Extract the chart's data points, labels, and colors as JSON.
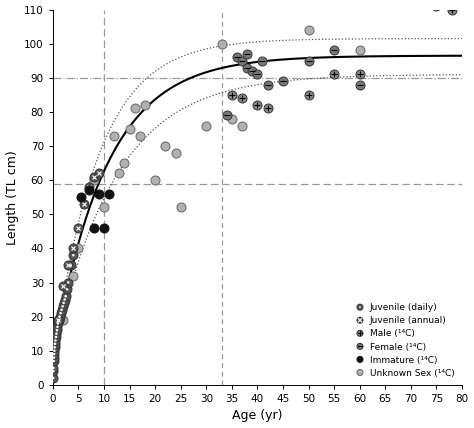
{
  "xlabel": "Age (yr)",
  "ylabel": "Length (TL cm)",
  "xlim": [
    0,
    80
  ],
  "ylim": [
    0,
    110
  ],
  "xticks": [
    0,
    5,
    10,
    15,
    20,
    25,
    30,
    35,
    40,
    45,
    50,
    55,
    60,
    65,
    70,
    75,
    80
  ],
  "yticks": [
    0,
    10,
    20,
    30,
    40,
    50,
    60,
    70,
    80,
    90,
    100,
    110
  ],
  "vonB_Linf": 96.5,
  "vonB_k": 0.097,
  "vonB_t0": -0.8,
  "vonB_Linf_upper": 101.5,
  "vonB_k_upper": 0.115,
  "vonB_t0_upper": -0.5,
  "vonB_Linf_lower": 91.0,
  "vonB_k_lower": 0.083,
  "vonB_t0_lower": -1.1,
  "vline1_x": 10,
  "vline2_x": 33,
  "hline1_y": 90,
  "hline2_y": 59,
  "juvenile_daily_x": [
    0.05,
    0.08,
    0.1,
    0.15,
    0.2,
    0.25,
    0.3,
    0.35,
    0.4,
    0.5,
    0.6,
    0.7,
    0.8,
    0.9,
    1.0,
    1.1,
    1.2,
    1.3,
    1.5,
    1.7,
    1.9,
    2.1,
    2.3,
    2.5,
    2.8,
    3.0,
    3.5,
    4.0
  ],
  "juvenile_daily_y": [
    2,
    4,
    5,
    7,
    8,
    9,
    10,
    11,
    12,
    13,
    14,
    15,
    16,
    17,
    18,
    19,
    19,
    20,
    21,
    22,
    23,
    24,
    25,
    26,
    28,
    30,
    35,
    38
  ],
  "juvenile_annual_x": [
    1.0,
    2.0,
    3.0,
    4.0,
    5.0,
    6.0,
    7.0,
    8.0,
    9.0
  ],
  "juvenile_annual_y": [
    19,
    29,
    35,
    40,
    46,
    53,
    58,
    61,
    62
  ],
  "male_14C_x": [
    35,
    37,
    40,
    42,
    50,
    55,
    60,
    75,
    78
  ],
  "male_14C_y": [
    85,
    84,
    82,
    81,
    85,
    91,
    91,
    111,
    110
  ],
  "female_14C_x": [
    34,
    36,
    37,
    38,
    38,
    39,
    40,
    41,
    42,
    45,
    50,
    55,
    60
  ],
  "female_14C_y": [
    79,
    96,
    95,
    97,
    93,
    92,
    91,
    95,
    88,
    89,
    95,
    98,
    88
  ],
  "immature_14C_x": [
    5.5,
    7.0,
    8.0,
    9.0,
    10.0,
    11.0
  ],
  "immature_14C_y": [
    55,
    57,
    46,
    56,
    46,
    56
  ],
  "unknown_14C_x": [
    2,
    4,
    5,
    8,
    10,
    12,
    13,
    14,
    15,
    16,
    17,
    18,
    20,
    22,
    24,
    25,
    30,
    33,
    35,
    37,
    50,
    60
  ],
  "unknown_14C_y": [
    19,
    32,
    40,
    60,
    52,
    73,
    62,
    65,
    75,
    81,
    73,
    82,
    60,
    70,
    68,
    52,
    76,
    100,
    78,
    76,
    104,
    98
  ],
  "col_dark": "#333333",
  "col_mid": "#666666",
  "col_light": "#aaaaaa",
  "col_immature": "#111111",
  "col_female": "#777777",
  "col_male": "#888888",
  "col_jdaily": "#555555",
  "col_jannual": "#555555",
  "col_unknown": "#b0b0b0",
  "ms": 6.5
}
